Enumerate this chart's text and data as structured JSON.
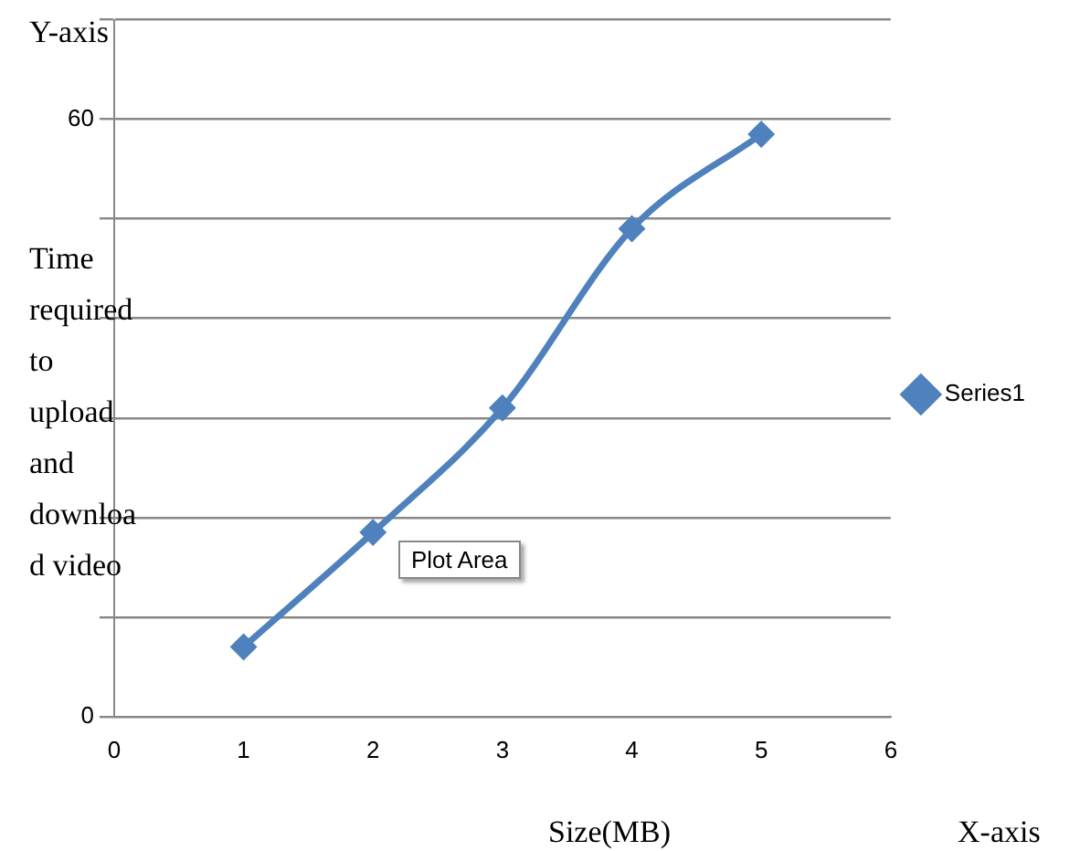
{
  "chart_data": {
    "type": "line",
    "xlabel": "Size(MB)",
    "ylabel": "Time required to upload and download video",
    "annotations": [
      "Y-axis",
      "X-axis",
      "Plot Area"
    ],
    "x": [
      1,
      2,
      3,
      4,
      5
    ],
    "series": [
      {
        "name": "Series1",
        "color": "#4f81bd",
        "values": [
          7,
          18.5,
          31,
          49,
          58.5
        ]
      }
    ],
    "xlim": [
      0,
      6
    ],
    "xticks": [
      0,
      1,
      2,
      3,
      4,
      5,
      6
    ],
    "ylim": [
      0,
      70
    ],
    "yticks": [
      0,
      {
        "value": 10,
        "label": null
      },
      {
        "value": 20,
        "label": null
      },
      {
        "value": 30,
        "label": null
      },
      {
        "value": 40,
        "label": null
      },
      {
        "value": 50,
        "label": null
      },
      60,
      {
        "value": 70,
        "label": null
      }
    ],
    "grid": "y",
    "legend": "right",
    "marker": "diamond",
    "line_style": "solid"
  }
}
